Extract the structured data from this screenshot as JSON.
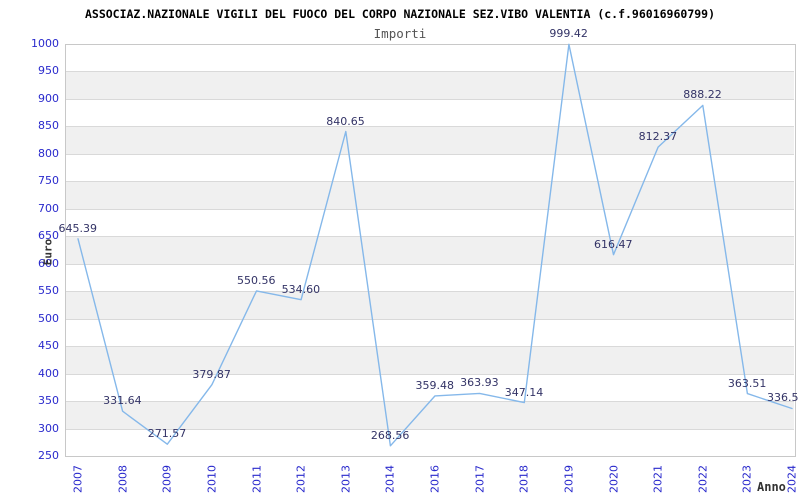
{
  "header": {
    "title": "ASSOCIAZ.NAZIONALE VIGILI DEL FUOCO DEL CORPO NAZIONALE SEZ.VIBO VALENTIA (c.f.96016960799)",
    "subtitle": "Importi"
  },
  "chart_data": {
    "type": "line",
    "title": "ASSOCIAZ.NAZIONALE VIGILI DEL FUOCO DEL CORPO NAZIONALE SEZ.VIBO VALENTIA (c.f.96016960799)",
    "subtitle": "Importi",
    "xlabel": "Anno",
    "ylabel": "Euro",
    "categories": [
      "2007",
      "2008",
      "2009",
      "2010",
      "2011",
      "2012",
      "2013",
      "2014",
      "2016",
      "2017",
      "2018",
      "2019",
      "2020",
      "2021",
      "2022",
      "2023",
      "2024"
    ],
    "values": [
      645.39,
      331.64,
      271.57,
      379.87,
      550.56,
      534.6,
      840.65,
      268.56,
      359.48,
      363.93,
      347.14,
      999.42,
      616.47,
      812.37,
      888.22,
      363.51,
      336.5
    ],
    "value_labels": [
      "645.39",
      "331.64",
      "271.57",
      "379.87",
      "550.56",
      "534.60",
      "840.65",
      "268.56",
      "359.48",
      "363.93",
      "347.14",
      "999.42",
      "616.47",
      "812.37",
      "888.22",
      "363.51",
      "336.5"
    ],
    "ylim": [
      250,
      1000
    ],
    "ytick_step": 50,
    "grid": "horizontal-bands-alternating",
    "legend": "none",
    "colors": {
      "line": "#85b8ea",
      "data_label": "#333366",
      "tick_label": "#2929cc",
      "band_gray": "#f0f0f0",
      "band_white": "#ffffff",
      "gridline": "#d9d9d9",
      "plot_border": "#c8c8c8",
      "title": "#000000",
      "subtitle": "#555555",
      "axis_title": "#333333",
      "background": "#ffffff"
    }
  }
}
